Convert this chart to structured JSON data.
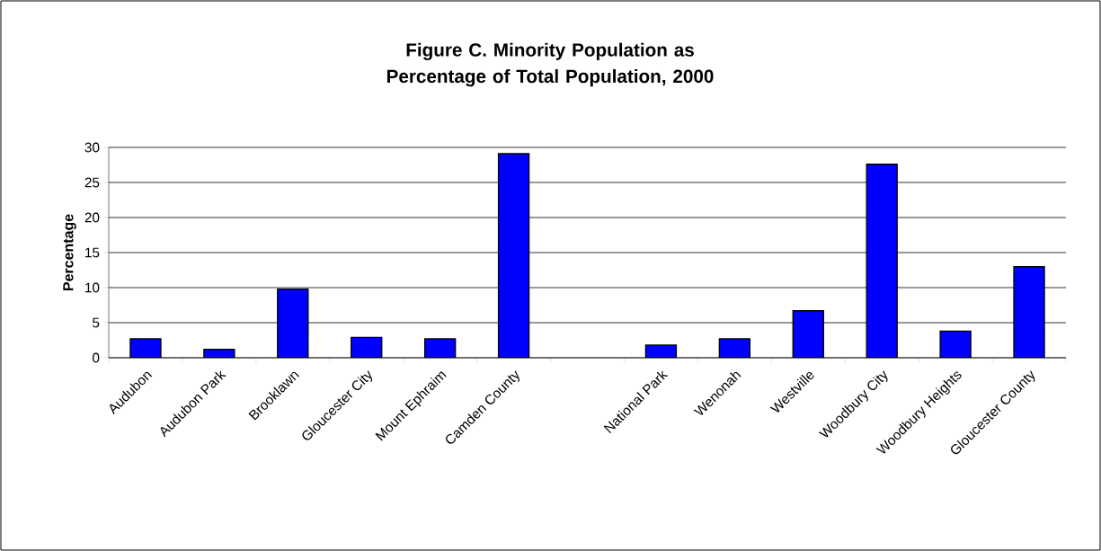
{
  "chart_data": {
    "type": "bar",
    "title": "Figure C. Minority Population as Percentage of Total Population, 2000",
    "ylabel": "Percentage",
    "categories": [
      "Audubon",
      "Audubon Park",
      "Brooklawn",
      "Gloucester City",
      "Mount Ephraim",
      "Camden County",
      null,
      "National Park",
      "Wenonah",
      "Westville",
      "Woodbury City",
      "Woodbury Heights",
      "Gloucester County"
    ],
    "values": [
      2.7,
      1.2,
      9.8,
      2.9,
      2.7,
      29.1,
      null,
      1.8,
      2.7,
      6.7,
      27.6,
      3.8,
      13.0
    ],
    "color": "#0000ff",
    "ylim": [
      0,
      30
    ],
    "yticks": [
      0,
      5,
      10,
      15,
      20,
      25,
      30
    ],
    "grid": "y"
  }
}
